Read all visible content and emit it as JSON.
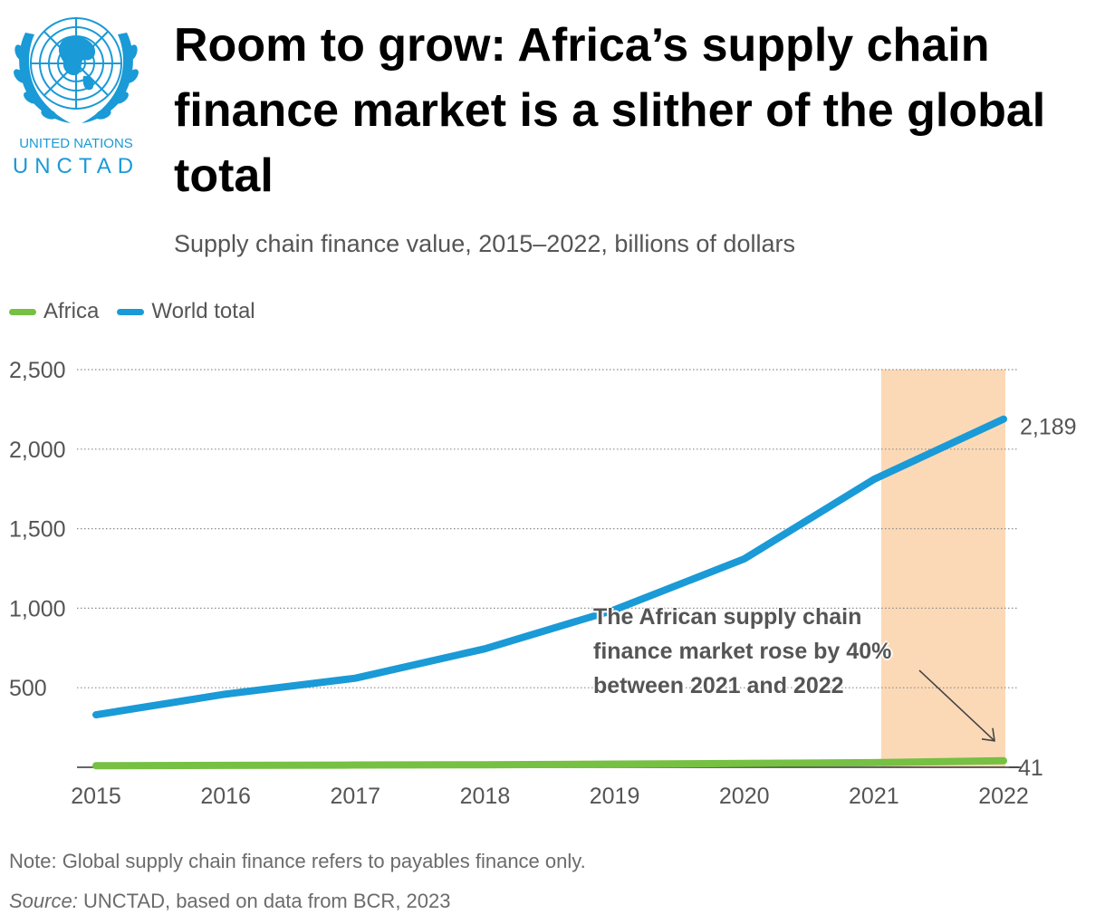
{
  "branding": {
    "logo_icon": "un-emblem-icon",
    "line1": "UNITED NATIONS",
    "line2": "UNCTAD"
  },
  "header": {
    "title": "Room to grow: Africa’s supply chain finance market is a slither of the global total",
    "subtitle": "Supply chain finance value, 2015–2022, billions of dollars"
  },
  "colors": {
    "africa": "#76c043",
    "world": "#1a9ad6",
    "highlight": "#fcd9b6",
    "grid": "#8c8c8c",
    "axis_text": "#555555"
  },
  "chart_data": {
    "type": "line",
    "x": [
      2015,
      2016,
      2017,
      2018,
      2019,
      2020,
      2021,
      2022
    ],
    "series": [
      {
        "name": "Africa",
        "values": [
          10,
          12,
          14,
          16,
          20,
          24,
          29,
          41
        ],
        "end_label": "41"
      },
      {
        "name": "World total",
        "values": [
          330,
          460,
          560,
          745,
          990,
          1310,
          1810,
          2189
        ],
        "end_label": "2,189"
      }
    ],
    "yticks": [
      500,
      1000,
      1500,
      2000,
      2500
    ],
    "ytick_labels": [
      "500",
      "1,000",
      "1,500",
      "2,000",
      "2,500"
    ],
    "xtick_labels": [
      "2015",
      "2016",
      "2017",
      "2018",
      "2019",
      "2020",
      "2021",
      "2022"
    ],
    "ylim": [
      0,
      2500
    ],
    "grid": true,
    "highlight_range": [
      2021,
      2022
    ],
    "legend_position": "top-left",
    "annotation": {
      "text": "The African supply chain finance market rose by 40% between 2021 and 2022",
      "points_to": {
        "x": 2022,
        "y": 41
      }
    },
    "title": "Room to grow: Africa’s supply chain finance market is a slither of the global total",
    "xlabel": "",
    "ylabel": ""
  },
  "footer": {
    "note": "Note: Global supply chain finance refers to payables finance only.",
    "source_label": "Source:",
    "source_text": " UNCTAD, based on data from BCR, 2023"
  }
}
